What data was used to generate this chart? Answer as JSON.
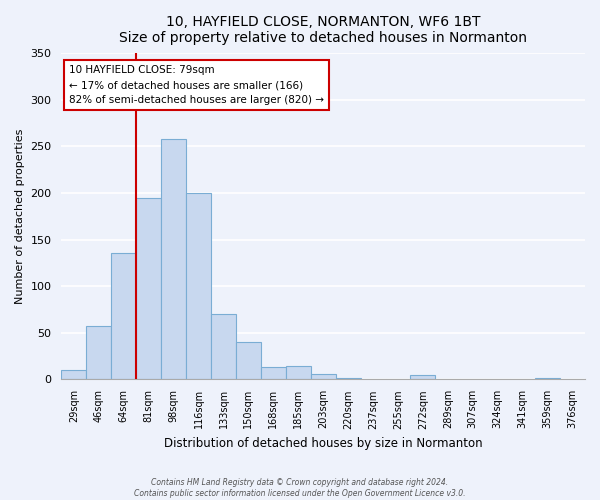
{
  "title": "10, HAYFIELD CLOSE, NORMANTON, WF6 1BT",
  "subtitle": "Size of property relative to detached houses in Normanton",
  "xlabel": "Distribution of detached houses by size in Normanton",
  "ylabel": "Number of detached properties",
  "bar_color": "#c8d8ef",
  "bar_edge_color": "#7aadd4",
  "bin_labels": [
    "29sqm",
    "46sqm",
    "64sqm",
    "81sqm",
    "98sqm",
    "116sqm",
    "133sqm",
    "150sqm",
    "168sqm",
    "185sqm",
    "203sqm",
    "220sqm",
    "237sqm",
    "255sqm",
    "272sqm",
    "289sqm",
    "307sqm",
    "324sqm",
    "341sqm",
    "359sqm",
    "376sqm"
  ],
  "bar_values": [
    10,
    57,
    136,
    195,
    258,
    200,
    70,
    40,
    13,
    14,
    6,
    2,
    0,
    0,
    5,
    0,
    0,
    0,
    0,
    2,
    0
  ],
  "vline_x": 3,
  "vline_color": "#cc0000",
  "annotation_text": "10 HAYFIELD CLOSE: 79sqm\n← 17% of detached houses are smaller (166)\n82% of semi-detached houses are larger (820) →",
  "annotation_box_color": "#ffffff",
  "annotation_box_edge_color": "#cc0000",
  "ylim": [
    0,
    350
  ],
  "yticks": [
    0,
    50,
    100,
    150,
    200,
    250,
    300,
    350
  ],
  "footer1": "Contains HM Land Registry data © Crown copyright and database right 2024.",
  "footer2": "Contains public sector information licensed under the Open Government Licence v3.0.",
  "background_color": "#eef2fb",
  "grid_color": "#ffffff"
}
